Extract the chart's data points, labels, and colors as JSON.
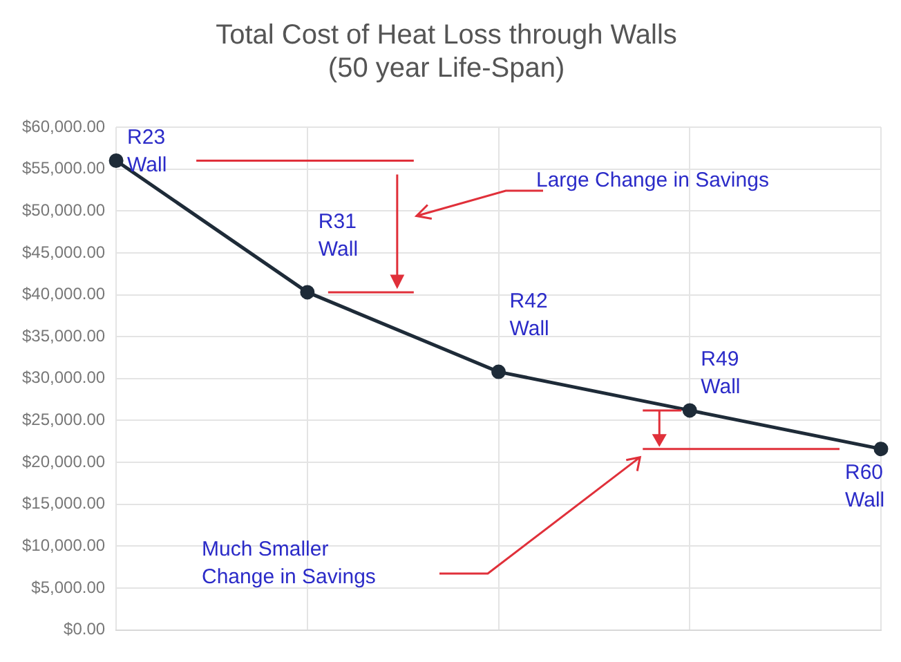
{
  "chart_data": {
    "type": "line",
    "title": "Total Cost of Heat Loss through Walls",
    "subtitle": "(50 year Life-Span)",
    "categories": [
      null,
      null,
      null,
      null,
      null
    ],
    "series": [
      {
        "color": "#1e2b38",
        "values": [
          56000,
          40300,
          30800,
          26200,
          21600
        ]
      }
    ],
    "ylim": [
      0,
      60000
    ],
    "yticks": [
      {
        "value": 0,
        "label": "$0.00"
      },
      {
        "value": 5000,
        "label": "$5,000.00"
      },
      {
        "value": 10000,
        "label": "$10,000.00"
      },
      {
        "value": 15000,
        "label": "$15,000.00"
      },
      {
        "value": 20000,
        "label": "$20,000.00"
      },
      {
        "value": 25000,
        "label": "$25,000.00"
      },
      {
        "value": 30000,
        "label": "$30,000.00"
      },
      {
        "value": 35000,
        "label": "$35,000.00"
      },
      {
        "value": 40000,
        "label": "$40,000.00"
      },
      {
        "value": 45000,
        "label": "$45,000.00"
      },
      {
        "value": 50000,
        "label": "$50,000.00"
      },
      {
        "value": 55000,
        "label": "$55,000.00"
      },
      {
        "value": 60000,
        "label": "$60,000.00"
      }
    ],
    "tick_labels": "y",
    "grid": true,
    "legend": false,
    "marker": "circle",
    "line_style": "solid",
    "annotations": [
      "R23 Wall",
      "R31 Wall",
      "R42 Wall",
      "R49 Wall",
      "R60 Wall",
      "Large Change in Savings",
      "Much Smaller Change in Savings"
    ]
  }
}
